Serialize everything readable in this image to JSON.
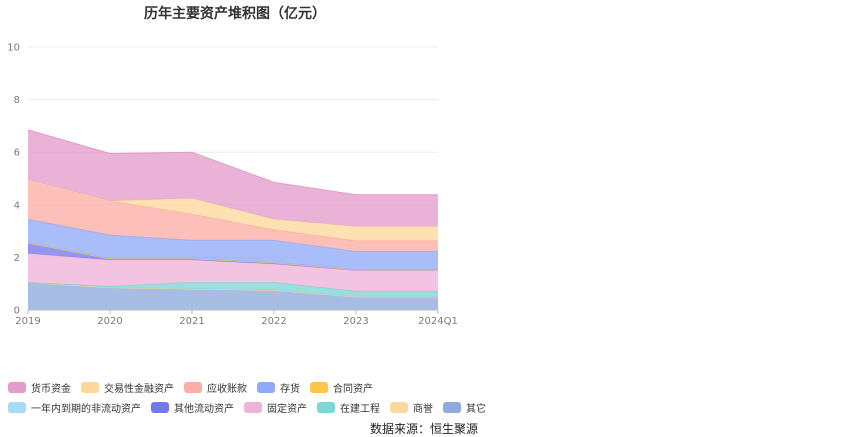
{
  "source_text": "数据来源：恒生聚源",
  "chart_data": {
    "type": "area",
    "stacked": true,
    "title": "历年主要资产堆积图（亿元）",
    "xlabel": "",
    "ylabel": "",
    "categories": [
      "2019",
      "2020",
      "2021",
      "2022",
      "2023",
      "2024Q1"
    ],
    "ylim": [
      0,
      10
    ],
    "yticks": [
      0,
      2,
      4,
      6,
      8,
      10
    ],
    "grid": true,
    "legend_position": "bottom-left",
    "series": [
      {
        "name": "其它",
        "color": "#8faadc",
        "values": [
          1.05,
          0.85,
          0.8,
          0.75,
          0.5,
          0.5
        ]
      },
      {
        "name": "商誉",
        "color": "#fdd89c",
        "values": [
          0.0,
          0.0,
          0.0,
          0.0,
          0.0,
          0.0
        ]
      },
      {
        "name": "在建工程",
        "color": "#7ed6d6",
        "values": [
          0.0,
          0.05,
          0.25,
          0.3,
          0.22,
          0.22
        ]
      },
      {
        "name": "固定资产",
        "color": "#efb3d9",
        "values": [
          1.1,
          1.0,
          0.85,
          0.7,
          0.78,
          0.78
        ]
      },
      {
        "name": "其他流动资产",
        "color": "#7479ea",
        "values": [
          0.4,
          0.05,
          0.05,
          0.05,
          0.03,
          0.03
        ]
      },
      {
        "name": "一年内到期的非流动资产",
        "color": "#a6dcf7",
        "values": [
          0.0,
          0.0,
          0.0,
          0.0,
          0.0,
          0.0
        ]
      },
      {
        "name": "合同资产",
        "color": "#fcc64a",
        "values": [
          0.0,
          0.0,
          0.0,
          0.0,
          0.0,
          0.0
        ]
      },
      {
        "name": "存货",
        "color": "#8faaf7",
        "values": [
          0.9,
          0.9,
          0.7,
          0.85,
          0.7,
          0.7
        ]
      },
      {
        "name": "应收账款",
        "color": "#fbada6",
        "values": [
          1.5,
          1.3,
          1.0,
          0.4,
          0.4,
          0.4
        ]
      },
      {
        "name": "交易性金融资产",
        "color": "#fdd89c",
        "values": [
          0.0,
          0.0,
          0.6,
          0.4,
          0.55,
          0.55
        ]
      },
      {
        "name": "货币资金",
        "color": "#e39ccb",
        "values": [
          1.9,
          1.8,
          1.75,
          1.4,
          1.2,
          1.2
        ]
      }
    ]
  },
  "legend": {
    "row1": [
      {
        "name": "货币资金",
        "color": "#e39ccb"
      },
      {
        "name": "交易性金融资产",
        "color": "#fdd89c"
      },
      {
        "name": "应收账款",
        "color": "#fbada6"
      },
      {
        "name": "存货",
        "color": "#8faaf7"
      },
      {
        "name": "合同资产",
        "color": "#fcc64a"
      }
    ],
    "row2": [
      {
        "name": "一年内到期的非流动资产",
        "color": "#a6dcf7"
      },
      {
        "name": "其他流动资产",
        "color": "#7479ea"
      },
      {
        "name": "固定资产",
        "color": "#efb3d9"
      },
      {
        "name": "在建工程",
        "color": "#7ed6d6"
      },
      {
        "name": "商誉",
        "color": "#fdd89c"
      },
      {
        "name": "其它",
        "color": "#8faadc"
      }
    ]
  }
}
